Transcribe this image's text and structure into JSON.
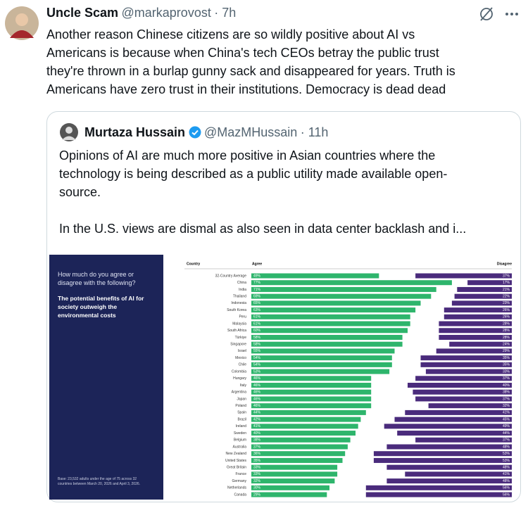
{
  "tweet": {
    "name": "Uncle Scam",
    "handle": "@markaprovost",
    "time": "· 7h",
    "text_lines": [
      "Another reason Chinese citizens are so wildly positive about AI vs",
      "Americans is because when China's tech CEOs betray the public trust",
      "they're thrown in a burlap gunny sack and disappeared for years. Truth is",
      "Americans have zero trust in their institutions. Democracy is dead dead"
    ]
  },
  "quoted": {
    "name": "Murtaza Hussain",
    "handle": "@MazMHussain",
    "time": "· 11h",
    "text_lines": [
      "Opinions of AI are much more positive in Asian countries where the",
      "technology is being described as a public utility made available open-",
      "source.",
      "In the U.S. views are dismal as also seen in data center backlash and i..."
    ]
  },
  "chart_data": {
    "type": "stacked_bar_diverging",
    "question": "How much do you agree or disagree with the following?",
    "statement": "The potential benefits of AI for society outweigh the environmental costs",
    "note": "Base: 23,532 adults under the age of 75 across 32 countries between March 20, 2026 and April 3, 2026.",
    "category_label": "Country",
    "categories": [
      "32-Country Average",
      "China",
      "India",
      "Thailand",
      "Indonesia",
      "South Korea",
      "Peru",
      "Malaysia",
      "South Africa",
      "Türkiye",
      "Singapore",
      "Israel",
      "Mexico",
      "Chile",
      "Colombia",
      "Hungary",
      "Italy",
      "Argentina",
      "Japan",
      "Poland",
      "Spain",
      "Brazil",
      "Ireland",
      "Sweden",
      "Belgium",
      "Australia",
      "New Zealand",
      "United States",
      "Great Britain",
      "France",
      "Germany",
      "Netherlands",
      "Canada"
    ],
    "series": [
      {
        "name": "Agree",
        "color": "#2eb56c",
        "values": [
          49,
          77,
          71,
          69,
          65,
          63,
          61,
          61,
          60,
          58,
          58,
          55,
          54,
          54,
          53,
          46,
          46,
          46,
          46,
          46,
          44,
          42,
          41,
          40,
          38,
          37,
          36,
          35,
          33,
          33,
          32,
          30,
          29
        ],
        "value_labels": [
          "49%",
          "77%",
          "71%",
          "69%",
          "65%",
          "63%",
          "61%",
          "61%",
          "60%",
          "58%",
          "58%",
          "55%",
          "54%",
          "54%",
          "53%",
          "46%",
          "46%",
          "46%",
          "46%",
          "46%",
          "44%",
          "42%",
          "41%",
          "40%",
          "38%",
          "37%",
          "36%",
          "35%",
          "33%",
          "33%",
          "32%",
          "30%",
          "29%"
        ]
      },
      {
        "name": "Disagree",
        "color": "#4a2b7c",
        "values": [
          37,
          17,
          21,
          22,
          23,
          26,
          26,
          28,
          28,
          28,
          24,
          29,
          35,
          35,
          33,
          37,
          40,
          38,
          37,
          32,
          41,
          45,
          49,
          44,
          37,
          48,
          53,
          53,
          48,
          41,
          48,
          56,
          56
        ],
        "value_labels": [
          "37%",
          "17%",
          "21%",
          "22%",
          "23%",
          "26%",
          "26%",
          "28%",
          "28%",
          "28%",
          "24%",
          "29%",
          "35%",
          "35%",
          "33%",
          "37%",
          "40%",
          "38%",
          "37%",
          "32%",
          "41%",
          "45%",
          "49%",
          "44%",
          "37%",
          "48%",
          "53%",
          "53%",
          "48%",
          "41%",
          "48%",
          "56%",
          "56%"
        ]
      }
    ]
  }
}
